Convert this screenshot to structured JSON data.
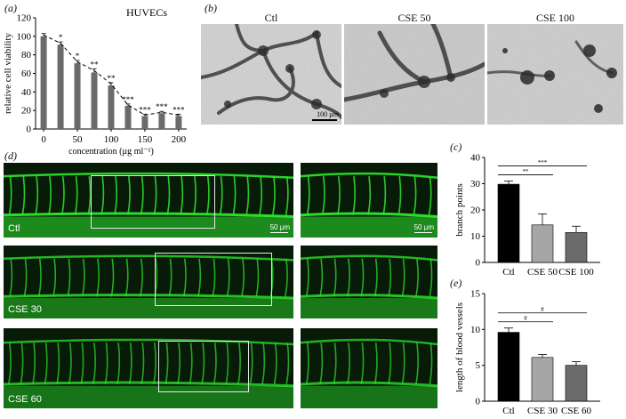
{
  "panels": {
    "a": "(a)",
    "b": "(b)",
    "c": "(c)",
    "d": "(d)",
    "e": "(e)"
  },
  "panel_b": {
    "titles": [
      "Ctl",
      "CSE 50",
      "CSE 100"
    ],
    "scale_bar": "100 µm"
  },
  "panel_d": {
    "labels": [
      "Ctl",
      "CSE 30",
      "CSE 60"
    ],
    "scale_bar_left": "50 µm",
    "scale_bar_right": "50 µm"
  },
  "colors": {
    "bar_gray": "#6b6b6b",
    "bar_black": "#000000",
    "bar_lightgray": "#a6a6a6",
    "fluorescence_green": "#2ee82e"
  },
  "chart_data": [
    {
      "id": "a",
      "type": "bar",
      "title": "HUVECs",
      "xlabel": "concentration (µg ml⁻¹)",
      "ylabel": "relative cell viability",
      "x": [
        0,
        25,
        50,
        75,
        100,
        125,
        150,
        175,
        200
      ],
      "values": [
        100,
        91,
        71,
        61,
        47,
        25,
        14,
        17,
        14
      ],
      "errors": [
        3,
        3,
        3,
        4,
        3,
        2,
        2,
        2,
        2
      ],
      "significance": [
        "",
        "*",
        "*",
        "**",
        "**",
        "***",
        "***",
        "***",
        "***"
      ],
      "xticks": [
        "0",
        "50",
        "100",
        "150",
        "200"
      ],
      "yticks": [
        "0",
        "20",
        "40",
        "60",
        "80",
        "100",
        "120"
      ],
      "ylim": [
        0,
        120
      ],
      "trendline": "dashed"
    },
    {
      "id": "c",
      "type": "bar",
      "xlabel": "",
      "ylabel": "branch points",
      "categories": [
        "Ctl",
        "CSE 50",
        "CSE 100"
      ],
      "values": [
        29.8,
        14.3,
        11.4
      ],
      "errors": [
        1.2,
        4.2,
        2.4
      ],
      "yticks": [
        "0",
        "10",
        "20",
        "30",
        "40"
      ],
      "ylim": [
        0,
        40
      ],
      "comparisons": [
        {
          "from": "Ctl",
          "to": "CSE 50",
          "label": "**"
        },
        {
          "from": "Ctl",
          "to": "CSE 100",
          "label": "***"
        }
      ]
    },
    {
      "id": "e",
      "type": "bar",
      "xlabel": "",
      "ylabel": "length of blood vessels",
      "categories": [
        "Ctl",
        "CSE 30",
        "CSE 60"
      ],
      "values": [
        9.6,
        6.1,
        5.0
      ],
      "errors": [
        0.6,
        0.4,
        0.5
      ],
      "yticks": [
        "0",
        "5",
        "10",
        "15"
      ],
      "ylim": [
        0,
        15
      ],
      "comparisons": [
        {
          "from": "Ctl",
          "to": "CSE 30",
          "label": "#"
        },
        {
          "from": "Ctl",
          "to": "CSE 60",
          "label": "#"
        }
      ]
    }
  ]
}
